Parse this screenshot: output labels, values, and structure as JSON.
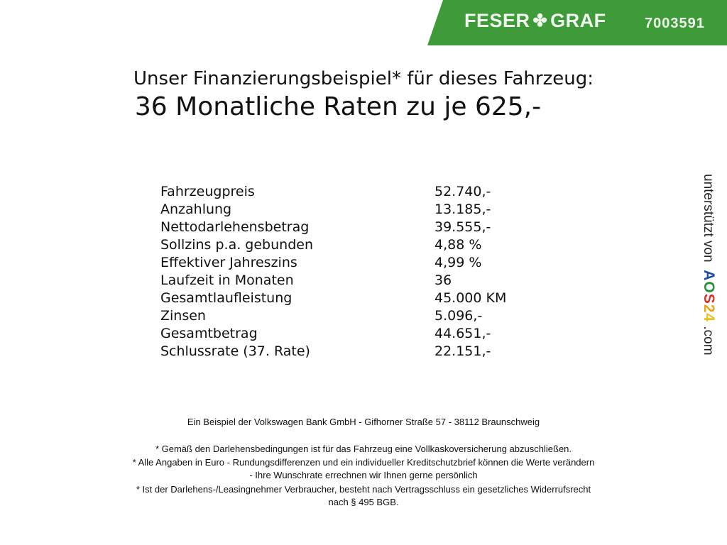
{
  "header": {
    "brand": "FESER",
    "brand2": "GRAF",
    "code": "7003591",
    "brand_color": "#3f9b3a"
  },
  "title": {
    "line1": "Unser Finanzierungsbeispiel* für dieses Fahrzeug:",
    "line2": "36 Monatliche Raten zu je 625,-"
  },
  "rows": [
    {
      "label": "Fahrzeugpreis",
      "value": "52.740,-"
    },
    {
      "label": "Anzahlung",
      "value": "13.185,-"
    },
    {
      "label": "Nettodarlehensbetrag",
      "value": "39.555,-"
    },
    {
      "label": "Sollzins p.a. gebunden",
      "value": "4,88 %"
    },
    {
      "label": "Effektiver Jahreszins",
      "value": "4,99 %"
    },
    {
      "label": "Laufzeit in Monaten",
      "value": "36"
    },
    {
      "label": "Gesamtlaufleistung",
      "value": "45.000 KM"
    },
    {
      "label": "Zinsen",
      "value": "5.096,-"
    },
    {
      "label": "Gesamtbetrag",
      "value": "44.651,-"
    },
    {
      "label": "Schlussrate (37. Rate)",
      "value": "22.151,-"
    }
  ],
  "side": {
    "text": "unterstützt von",
    "logo": "AOS24",
    ".com": ".com"
  },
  "notes": {
    "bank": "Ein Beispiel der Volkswagen Bank GmbH - Gifhorner Straße 57 - 38112 Braunschweig",
    "n1": "* Gemäß den Darlehensbedingungen ist für das Fahrzeug eine Vollkaskoversicherung abzuschließen.",
    "n2": "* Alle Angaben in Euro - Rundungsdifferenzen und ein individueller Kreditschutzbrief können die Werte verändern",
    "n3": "- Ihre Wunschrate errechnen wir Ihnen gerne persönlich",
    "n4": "* Ist der Darlehens-/Leasingnehmer Verbraucher, besteht nach Vertragsschluss ein gesetzliches Widerrufsrecht",
    "n5": "nach § 495 BGB."
  }
}
